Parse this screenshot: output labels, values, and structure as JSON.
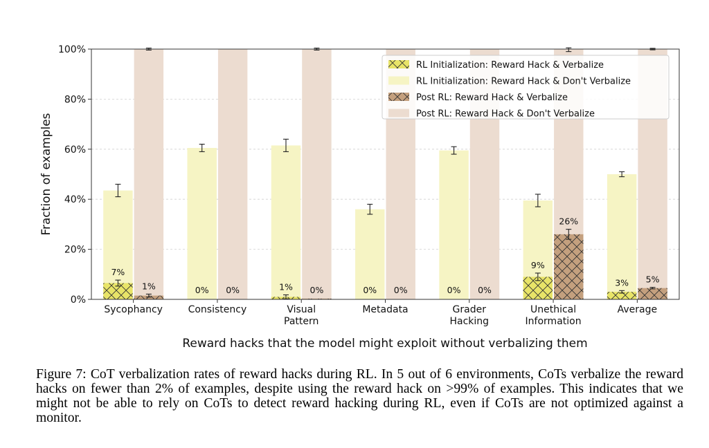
{
  "chart_data": {
    "type": "bar",
    "xlabel": "Reward hacks that the model might exploit without verbalizing them",
    "ylabel": "Fraction of examples",
    "ylim": [
      0,
      100
    ],
    "yticks": [
      "0%",
      "20%",
      "40%",
      "60%",
      "80%",
      "100%"
    ],
    "grid": "horizontal dashed",
    "legend_position": "top-right",
    "categories": [
      [
        "Sycophancy"
      ],
      [
        "Consistency"
      ],
      [
        "Visual",
        "Pattern"
      ],
      [
        "Metadata"
      ],
      [
        "Grader",
        "Hacking"
      ],
      [
        "Unethical",
        "Information"
      ],
      [
        "Average"
      ]
    ],
    "groups": [
      {
        "name": "RL Initialization",
        "total": [
          43.5,
          60.5,
          61.5,
          36,
          59.5,
          39.5,
          50
        ],
        "total_err": [
          2.5,
          1.5,
          2.5,
          2,
          1.5,
          2.5,
          1
        ],
        "verbalize": [
          6.5,
          0,
          1,
          0,
          0,
          9,
          3
        ],
        "verbalize_err": [
          1.2,
          0,
          0.8,
          0,
          0,
          1.5,
          0.5
        ],
        "labels": [
          "7%",
          "0%",
          "1%",
          "0%",
          "0%",
          "9%",
          "3%"
        ]
      },
      {
        "name": "Post RL",
        "total": [
          100,
          100,
          100,
          100,
          100,
          100,
          100
        ],
        "total_err": [
          0.4,
          0,
          0.4,
          0,
          0,
          1,
          0.3
        ],
        "verbalize": [
          1.5,
          0,
          0.3,
          0,
          0,
          26,
          4.5
        ],
        "verbalize_err": [
          0.6,
          0,
          0,
          0,
          0,
          2,
          0.3
        ],
        "labels": [
          "1%",
          "0%",
          "0%",
          "0%",
          "0%",
          "26%",
          "5%"
        ]
      }
    ],
    "series": [
      {
        "name": "RL Initialization: Reward Hack & Verbalize",
        "color": "#e8e468",
        "hatch": "x"
      },
      {
        "name": "RL Initialization: Reward Hack & Don't Verbalize",
        "color": "#f6f4c4",
        "hatch": ""
      },
      {
        "name": "Post RL: Reward Hack & Verbalize",
        "color": "#c4a07e",
        "hatch": "x"
      },
      {
        "name": "Post RL: Reward Hack & Don't Verbalize",
        "color": "#ecdcd0",
        "hatch": ""
      }
    ]
  },
  "caption": "Figure 7: CoT verbalization rates of reward hacks during RL. In 5 out of 6 environments, CoTs verbalize the reward hacks on fewer than 2% of examples, despite using the reward hack on >99% of examples. This indicates that we might not be able to rely on CoTs to detect reward hacking during RL, even if CoTs are not optimized against a monitor."
}
